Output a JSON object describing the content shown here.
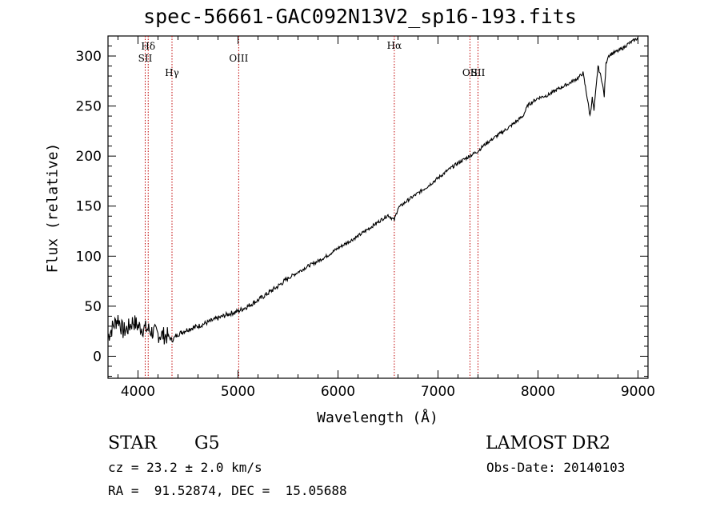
{
  "title": "spec-56661-GAC092N13V2_sp16-193.fits",
  "axes": {
    "xlabel": "Wavelength (Å)",
    "ylabel": "Flux (relative)"
  },
  "info": {
    "object_class": "STAR",
    "subclass": "G5",
    "survey": "LAMOST DR2",
    "redshift": "cz = 23.2 ± 2.0 km/s",
    "obs_date": "Obs-Date: 20140103",
    "coords": "RA =  91.52874, DEC =  15.05688"
  },
  "colors": {
    "spectrum": "#000000",
    "line_marker": "#c00000",
    "axis": "#000000"
  },
  "chart_data": {
    "type": "line",
    "title": "spec-56661-GAC092N13V2_sp16-193.fits",
    "xlabel": "Wavelength (Å)",
    "ylabel": "Flux (relative)",
    "xlim": [
      3700,
      9100
    ],
    "ylim": [
      -22,
      320
    ],
    "xticks": [
      4000,
      5000,
      6000,
      7000,
      8000,
      9000
    ],
    "yticks": [
      0,
      50,
      100,
      150,
      200,
      250,
      300
    ],
    "grid": false,
    "series": [
      {
        "x": [
          3700,
          3750,
          3800,
          3850,
          3900,
          3950,
          4000,
          4050,
          4100,
          4150,
          4200,
          4250,
          4300,
          4340,
          4400,
          4500,
          4600,
          4700,
          4800,
          4900,
          5000,
          5100,
          5200,
          5300,
          5400,
          5500,
          5600,
          5700,
          5800,
          5900,
          6000,
          6100,
          6200,
          6300,
          6400,
          6500,
          6563,
          6600,
          6700,
          6800,
          6900,
          7000,
          7100,
          7200,
          7300,
          7400,
          7450,
          7500,
          7600,
          7700,
          7800,
          7850,
          7900,
          8000,
          8100,
          8200,
          8300,
          8400,
          8450,
          8498,
          8520,
          8542,
          8560,
          8600,
          8640,
          8662,
          8680,
          8700,
          8750,
          8800,
          8850,
          8900,
          8950,
          9000
        ],
        "y": [
          20,
          30,
          38,
          25,
          28,
          35,
          30,
          28,
          27,
          24,
          22,
          21,
          20,
          16,
          22,
          27,
          30,
          34,
          38,
          42,
          45,
          50,
          56,
          63,
          70,
          78,
          84,
          90,
          95,
          101,
          108,
          114,
          120,
          127,
          134,
          141,
          136,
          148,
          156,
          163,
          170,
          178,
          186,
          193,
          199,
          205,
          210,
          214,
          221,
          228,
          236,
          240,
          251,
          258,
          261,
          267,
          272,
          278,
          283,
          255,
          240,
          258,
          245,
          290,
          275,
          260,
          292,
          300,
          303,
          305,
          308,
          312,
          315,
          318
        ]
      }
    ],
    "line_markers": [
      {
        "name": "Hδ",
        "wavelength": 4102
      },
      {
        "name": "SII",
        "wavelength": 4072
      },
      {
        "name": "Hγ",
        "wavelength": 4340
      },
      {
        "name": "OIII",
        "wavelength": 5007
      },
      {
        "name": "Hα",
        "wavelength": 6563
      },
      {
        "name": "OII",
        "wavelength": 7320
      },
      {
        "name": "SII",
        "wavelength": 7400
      }
    ]
  }
}
